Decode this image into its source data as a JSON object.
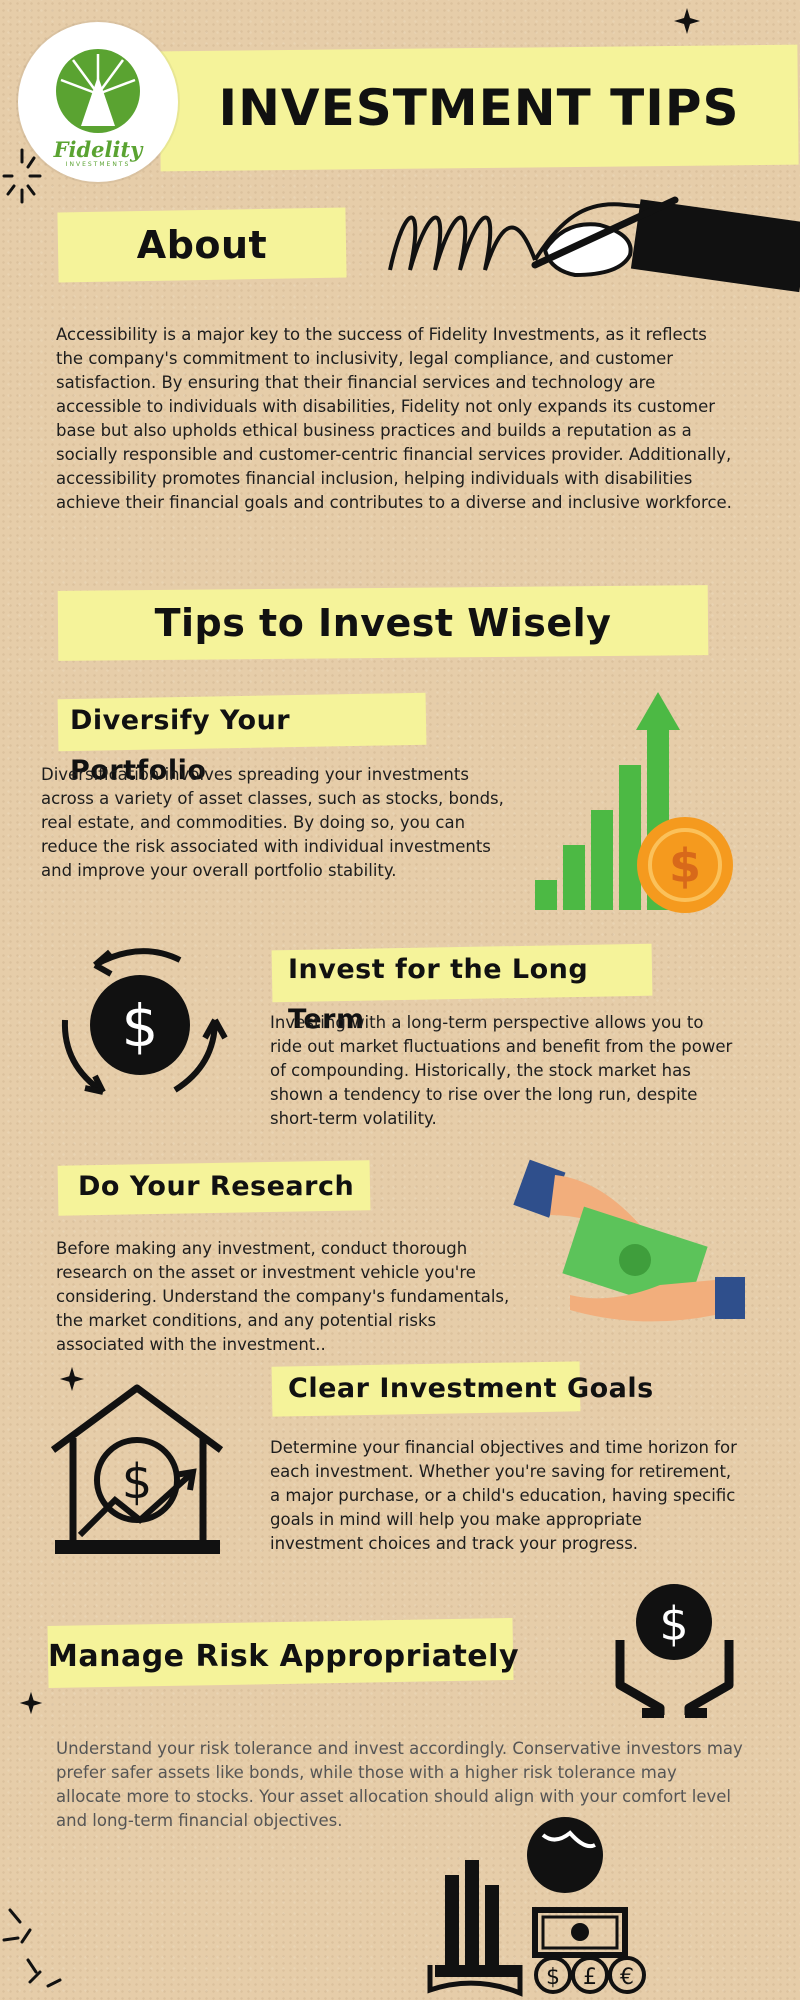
{
  "header": {
    "title": "INVESTMENT TIPS",
    "logo_name": "Fidelity",
    "logo_sub": "INVESTMENTS"
  },
  "about": {
    "heading": "About",
    "text": "Accessibility is a major key to the success of Fidelity Investments, as it reflects the company's commitment to inclusivity, legal compliance, and customer satisfaction. By ensuring that their financial services and technology are accessible to individuals with disabilities, Fidelity not only expands its customer base but also upholds ethical business practices and builds a reputation as a socially responsible and customer-centric financial services provider. Additionally, accessibility promotes financial inclusion, helping individuals with disabilities achieve their financial goals and contributes to a diverse and inclusive workforce."
  },
  "tips_heading": "Tips to Invest Wisely",
  "tips": [
    {
      "title": "Diversify Your Portfolio",
      "text": "Diversification involves spreading your investments across a variety of asset classes, such as stocks, bonds, real estate, and commodities. By doing so, you can reduce the risk associated with individual investments and improve your overall portfolio stability."
    },
    {
      "title": "Invest for the Long Term",
      "text": "Investing with a long-term perspective allows you to ride out market fluctuations and benefit from the power of compounding. Historically, the stock market has shown a tendency to rise over the long run, despite short-term volatility."
    },
    {
      "title": "Do Your Research",
      "text": "Before making any investment, conduct thorough research on the asset or investment vehicle you're considering. Understand the company's fundamentals, the market conditions, and any potential risks associated with the investment.."
    },
    {
      "title": "Clear Investment Goals",
      "text": "Determine your financial objectives and time horizon for each investment. Whether you're saving for retirement, a major purchase, or a child's education, having specific goals in mind will help you make appropriate investment choices and track your progress."
    },
    {
      "title": "Manage Risk Appropriately",
      "text": "Understand your risk tolerance and invest accordingly. Conservative investors may prefer safer assets like bonds, while those with a higher risk tolerance may allocate more to stocks. Your asset allocation should align with your comfort level and long-term financial objectives."
    }
  ],
  "colors": {
    "background": "#e6cda9",
    "highlight": "#f5f39a",
    "fidelity_green": "#5aa331",
    "chart_green": "#4cb944",
    "coin_orange": "#f59a1e"
  },
  "icons": {
    "logo": "fidelity-pyramid-icon",
    "about": "hand-writing-icon",
    "diversify": "growth-chart-coin-icon",
    "long_term": "dollar-cycle-icon",
    "research": "hands-money-icon",
    "goals": "house-dollar-icon",
    "risk": "hands-holding-coin-icon",
    "footer": "finance-books-globe-icon"
  },
  "icon_glyphs": {
    "dollar": "$",
    "pound": "£",
    "euro": "€"
  }
}
